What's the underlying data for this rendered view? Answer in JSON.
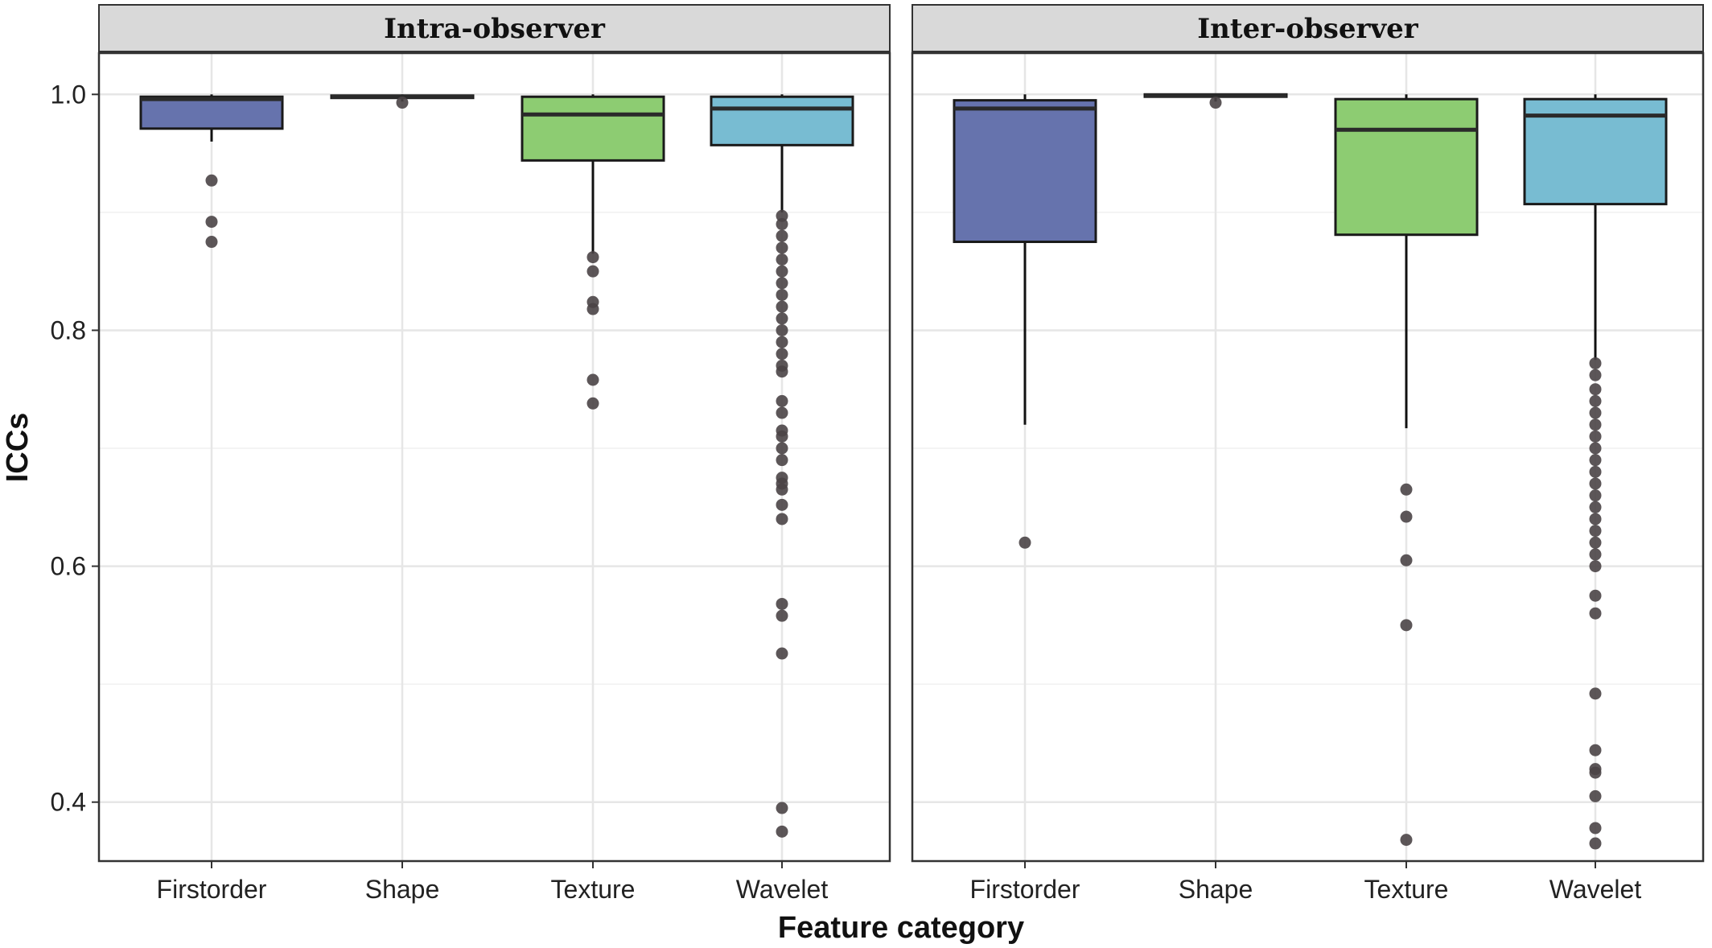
{
  "chart_data": {
    "type": "boxplot",
    "xlabel": "Feature category",
    "ylabel": "ICCs",
    "categories": [
      "Firstorder",
      "Shape",
      "Texture",
      "Wavelet"
    ],
    "ylim": [
      0.35,
      1.035
    ],
    "yticks": [
      0.4,
      0.6,
      0.8,
      1.0
    ],
    "ytick_labels": [
      "0.4",
      "0.6",
      "0.8",
      "1.0"
    ],
    "grid": true,
    "legend": "none",
    "colors": {
      "Firstorder": "#6673ad",
      "Shape": "#8fa64d",
      "Texture": "#8dcc72",
      "Wavelet": "#78bcd2",
      "outlier": "#4a4446",
      "strip_bg": "#d9d9d9",
      "grid": "#e6e6e6"
    },
    "panels": [
      {
        "title": "Intra-observer",
        "boxes": [
          {
            "category": "Firstorder",
            "whisker_low": 0.96,
            "q1": 0.971,
            "median": 0.996,
            "q3": 0.998,
            "whisker_high": 1.0,
            "outliers": [
              0.927,
              0.892,
              0.875
            ]
          },
          {
            "category": "Shape",
            "whisker_low": 0.994,
            "q1": 0.997,
            "median": 0.998,
            "q3": 0.999,
            "whisker_high": 1.0,
            "outliers": [
              0.993
            ]
          },
          {
            "category": "Texture",
            "whisker_low": 0.865,
            "q1": 0.944,
            "median": 0.983,
            "q3": 0.998,
            "whisker_high": 1.0,
            "outliers": [
              0.862,
              0.85,
              0.824,
              0.818,
              0.758,
              0.738
            ]
          },
          {
            "category": "Wavelet",
            "whisker_low": 0.9,
            "q1": 0.957,
            "median": 0.988,
            "q3": 0.998,
            "whisker_high": 1.0,
            "outliers": [
              0.897,
              0.89,
              0.88,
              0.87,
              0.86,
              0.85,
              0.84,
              0.83,
              0.82,
              0.81,
              0.8,
              0.79,
              0.78,
              0.77,
              0.765,
              0.74,
              0.73,
              0.715,
              0.71,
              0.7,
              0.69,
              0.675,
              0.67,
              0.665,
              0.652,
              0.64,
              0.568,
              0.558,
              0.526,
              0.395,
              0.375
            ]
          }
        ]
      },
      {
        "title": "Inter-observer",
        "boxes": [
          {
            "category": "Firstorder",
            "whisker_low": 0.72,
            "q1": 0.875,
            "median": 0.988,
            "q3": 0.995,
            "whisker_high": 1.0,
            "outliers": [
              0.62
            ]
          },
          {
            "category": "Shape",
            "whisker_low": 0.994,
            "q1": 0.998,
            "median": 0.999,
            "q3": 1.0,
            "whisker_high": 1.0,
            "outliers": [
              0.993
            ]
          },
          {
            "category": "Texture",
            "whisker_low": 0.717,
            "q1": 0.881,
            "median": 0.97,
            "q3": 0.996,
            "whisker_high": 1.0,
            "outliers": [
              0.665,
              0.642,
              0.605,
              0.55,
              0.368
            ]
          },
          {
            "category": "Wavelet",
            "whisker_low": 0.775,
            "q1": 0.907,
            "median": 0.982,
            "q3": 0.996,
            "whisker_high": 1.0,
            "outliers": [
              0.772,
              0.762,
              0.75,
              0.74,
              0.73,
              0.72,
              0.71,
              0.7,
              0.69,
              0.68,
              0.67,
              0.66,
              0.65,
              0.64,
              0.63,
              0.62,
              0.61,
              0.6,
              0.575,
              0.56,
              0.492,
              0.444,
              0.428,
              0.425,
              0.405,
              0.378,
              0.365
            ]
          }
        ]
      }
    ]
  }
}
